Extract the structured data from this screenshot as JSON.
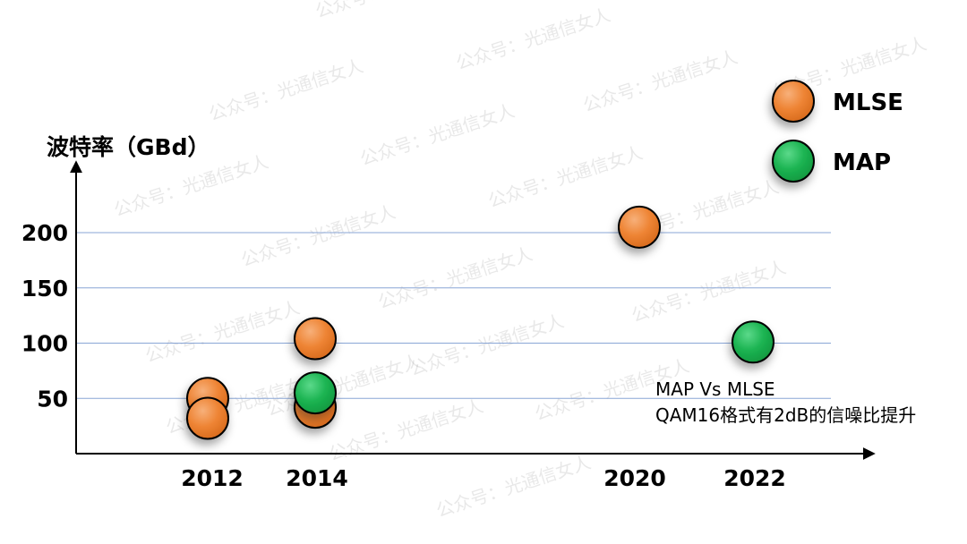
{
  "watermark": "公众号：光通信女人",
  "annotation": {
    "line1": "MAP Vs MLSE",
    "line2": "QAM16格式有2dB的信噪比提升"
  },
  "chart_data": {
    "type": "scatter",
    "ylabel": "波特率（GBd）",
    "xlabel": "",
    "x_ticks": [
      "2012",
      "2014",
      "2020",
      "2022"
    ],
    "y_ticks": [
      50,
      100,
      150,
      200
    ],
    "ylim": [
      0,
      240
    ],
    "grid": "horizontal",
    "legend_position": "top-right",
    "colors": {
      "MLSE": "#ee8434",
      "MAP": "#1cb452",
      "grid": "#8aa6d6",
      "axis": "#000000"
    },
    "series": [
      {
        "name": "MLSE",
        "points": [
          {
            "x": "2012",
            "y": 50
          },
          {
            "x": "2012",
            "y": 32
          },
          {
            "x": "2014",
            "y": 42
          },
          {
            "x": "2014",
            "y": 104
          },
          {
            "x": "2020",
            "y": 205
          }
        ]
      },
      {
        "name": "MAP",
        "points": [
          {
            "x": "2014",
            "y": 55
          },
          {
            "x": "2022",
            "y": 101
          }
        ]
      }
    ]
  }
}
